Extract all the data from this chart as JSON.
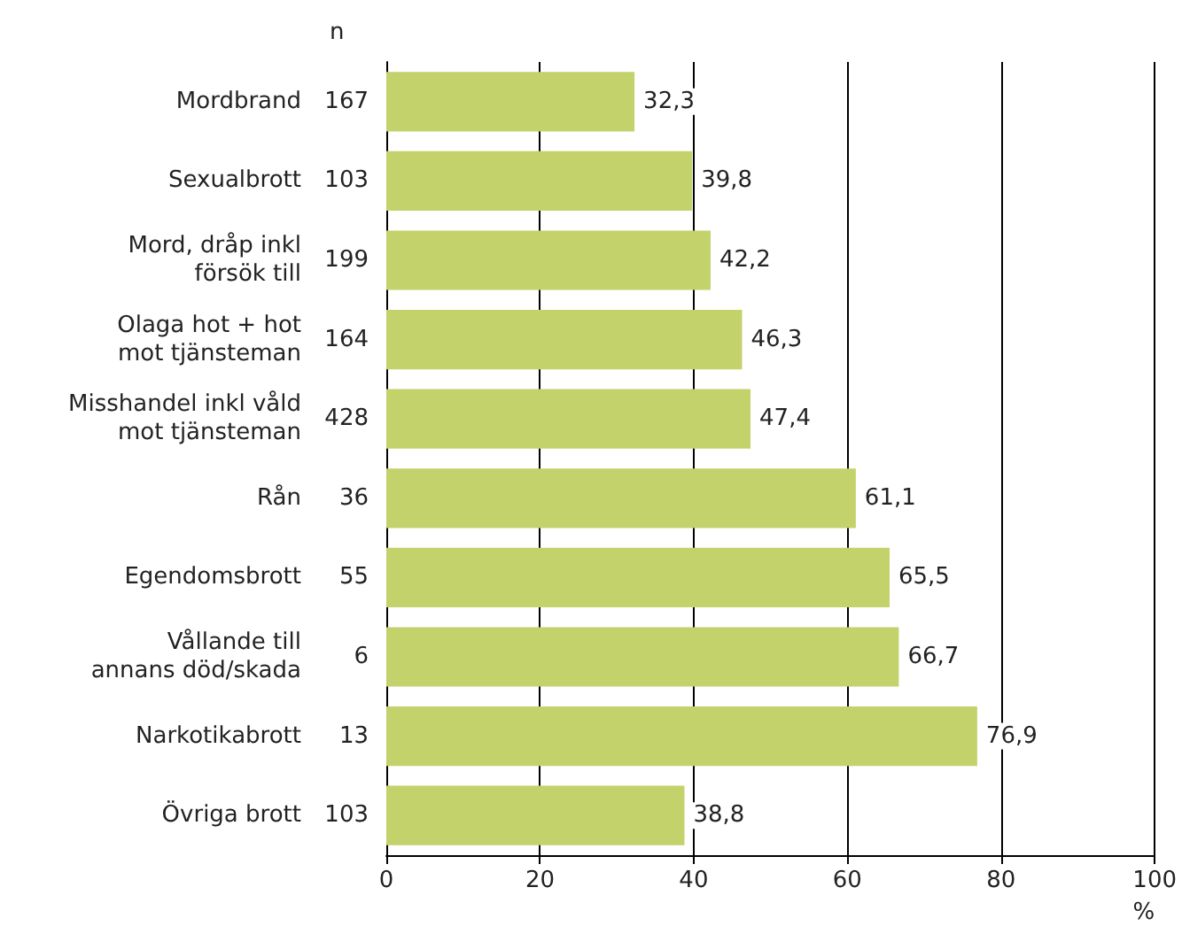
{
  "chart_data": {
    "type": "bar",
    "orientation": "horizontal",
    "categories": [
      "Mordbrand",
      "Sexualbrott",
      "Mord, dråp inkl\nförsök till",
      "Olaga hot + hot\nmot tjänsteman",
      "Misshandel inkl våld\nmot tjänsteman",
      "Rån",
      "Egendomsbrott",
      "Vållande till\nannans död/skada",
      "Narkotikabrott",
      "Övriga brott"
    ],
    "values": [
      32.3,
      39.8,
      42.2,
      46.3,
      47.4,
      61.1,
      65.5,
      66.7,
      76.9,
      38.8
    ],
    "value_labels": [
      "32,3",
      "39,8",
      "42,2",
      "46,3",
      "47,4",
      "61,1",
      "65,5",
      "66,7",
      "76,9",
      "38,8"
    ],
    "color": "#c3d26a",
    "xlim": [
      0,
      100
    ],
    "xticks": [
      0,
      20,
      40,
      60,
      80,
      100
    ],
    "xlabel": "%",
    "grid": "x",
    "annotations": [
      "n",
      "167",
      "103",
      "199",
      "164",
      "428",
      "36",
      "55",
      "6",
      "13",
      "103"
    ]
  }
}
